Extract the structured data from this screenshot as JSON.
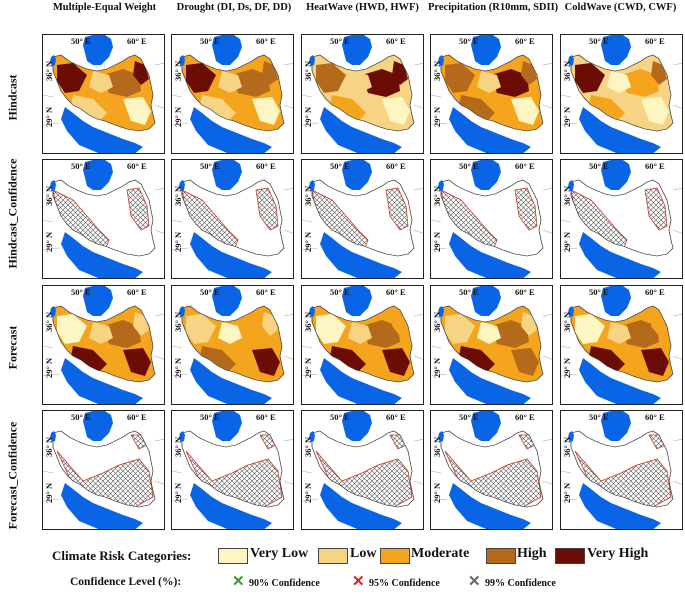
{
  "columns": [
    {
      "title": "Multiple-Equal Weight"
    },
    {
      "title": "Drought (DI, Ds, DF, DD)"
    },
    {
      "title": "HeatWave (HWD, HWF)"
    },
    {
      "title": "Precipitation (R10mm, SDII)"
    },
    {
      "title": "ColdWave (CWD, CWF)"
    }
  ],
  "rows": [
    {
      "label": "Hindcast",
      "kind": "risk"
    },
    {
      "label": "Hindcast_Confidence",
      "kind": "confidence"
    },
    {
      "label": "Forecast",
      "kind": "risk"
    },
    {
      "label": "Forecast_Confidence",
      "kind": "confidence"
    }
  ],
  "axis_labels": {
    "lon": [
      "50° E",
      "60° E"
    ],
    "lat": [
      "36° N",
      "29° N"
    ]
  },
  "legend": {
    "risk_title": "Climate Risk Categories:",
    "risk_categories": [
      {
        "label": "Very Low",
        "color": "#fdf6c3"
      },
      {
        "label": "Low",
        "color": "#f7d384"
      },
      {
        "label": "Moderate",
        "color": "#f4a41d"
      },
      {
        "label": "High",
        "color": "#b56a1b"
      },
      {
        "label": "Very High",
        "color": "#6b0d05"
      }
    ],
    "confidence_title": "Confidence Level (%):",
    "confidence_levels": [
      {
        "label": "90% Confidence",
        "color": "#33a02c",
        "icon": "x-mark-icon"
      },
      {
        "label": "95% Confidence",
        "color": "#e31a1c",
        "icon": "x-mark-icon"
      },
      {
        "label": "99% Confidence",
        "color": "#666666",
        "icon": "x-mark-icon"
      }
    ]
  },
  "colors": {
    "water": "#0a64e6",
    "outline": "#444444",
    "hatch": "#555555"
  }
}
